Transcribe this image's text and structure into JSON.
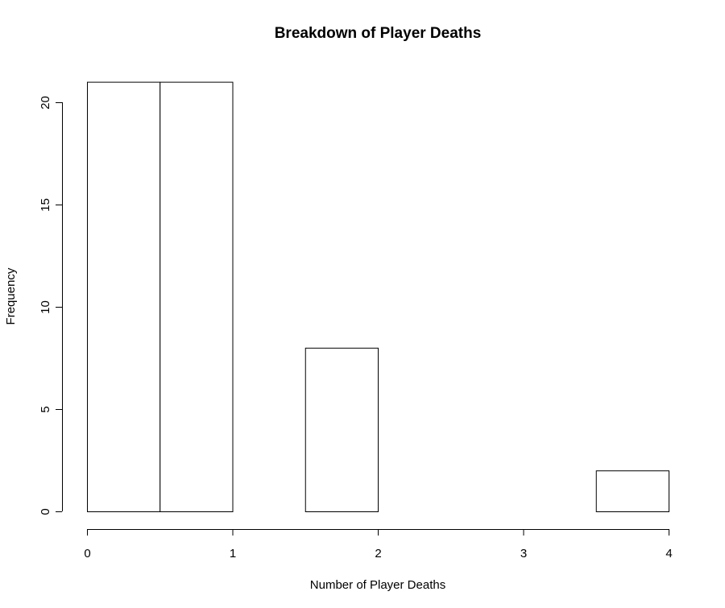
{
  "chart_data": {
    "type": "bar",
    "title": "Breakdown of Player Deaths",
    "xlabel": "Number of Player Deaths",
    "ylabel": "Frequency",
    "bins": [
      {
        "x0": 0.0,
        "x1": 0.5,
        "value": 21
      },
      {
        "x0": 0.5,
        "x1": 1.0,
        "value": 21
      },
      {
        "x0": 1.0,
        "x1": 1.5,
        "value": 0
      },
      {
        "x0": 1.5,
        "x1": 2.0,
        "value": 8
      },
      {
        "x0": 2.0,
        "x1": 2.5,
        "value": 0
      },
      {
        "x0": 2.5,
        "x1": 3.0,
        "value": 0
      },
      {
        "x0": 3.0,
        "x1": 3.5,
        "value": 0
      },
      {
        "x0": 3.5,
        "x1": 4.0,
        "value": 2
      }
    ],
    "xlim": [
      0,
      4
    ],
    "ylim": [
      0,
      21
    ],
    "xticks": [
      "0",
      "1",
      "2",
      "3",
      "4"
    ],
    "yticks": [
      "0",
      "5",
      "10",
      "15",
      "20"
    ],
    "grid": false,
    "bar_fill": "#ffffff",
    "bar_stroke": "#000000"
  }
}
